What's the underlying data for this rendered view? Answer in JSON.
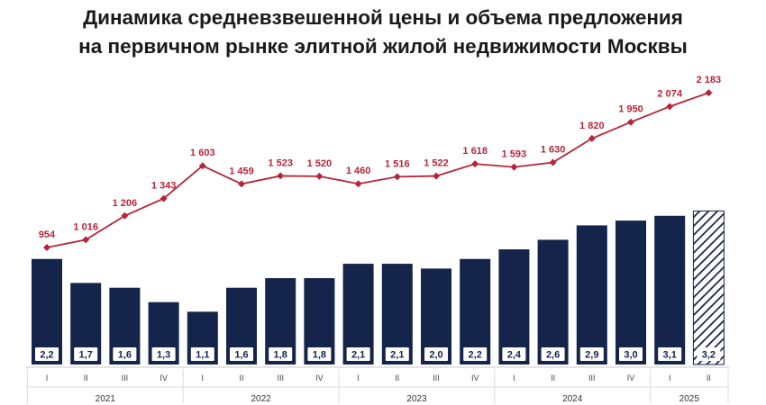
{
  "title": {
    "line1": "Динамика средневзвешенной цены и объема предложения",
    "line2": "на первичном рынке элитной жилой недвижимости Москвы"
  },
  "colors": {
    "bar": "#14244a",
    "line": "#b5253a",
    "label_bg": "#ffffff",
    "hatch": "#14244a"
  },
  "chart_data": {
    "type": "bar+line",
    "categories": [
      "I",
      "II",
      "III",
      "IV",
      "I",
      "II",
      "III",
      "IV",
      "I",
      "II",
      "III",
      "IV",
      "I",
      "II",
      "III",
      "IV",
      "I",
      "II"
    ],
    "years": [
      {
        "label": "2021",
        "start": 0,
        "count": 4
      },
      {
        "label": "2022",
        "start": 4,
        "count": 4
      },
      {
        "label": "2023",
        "start": 8,
        "count": 4
      },
      {
        "label": "2024",
        "start": 12,
        "count": 4
      },
      {
        "label": "2025",
        "start": 16,
        "count": 2
      }
    ],
    "series": [
      {
        "type": "bar",
        "values": [
          2.2,
          1.7,
          1.6,
          1.3,
          1.1,
          1.6,
          1.8,
          1.8,
          2.1,
          2.1,
          2.0,
          2.2,
          2.4,
          2.6,
          2.9,
          3.0,
          3.1,
          3.2
        ],
        "labels": [
          "2,2",
          "1,7",
          "1,6",
          "1,3",
          "1,1",
          "1,6",
          "1,8",
          "1,8",
          "2,1",
          "2,1",
          "2,0",
          "2,2",
          "2,4",
          "2,6",
          "2,9",
          "3,0",
          "3,1",
          "3,2"
        ],
        "hatched_index": 17
      },
      {
        "type": "line",
        "values": [
          954,
          1016,
          1206,
          1343,
          1603,
          1459,
          1523,
          1520,
          1460,
          1516,
          1522,
          1618,
          1593,
          1630,
          1820,
          1950,
          2074,
          2183
        ],
        "labels": [
          "954",
          "1 016",
          "1 206",
          "1 343",
          "1 603",
          "1 459",
          "1 523",
          "1 520",
          "1 460",
          "1 516",
          "1 522",
          "1 618",
          "1 593",
          "1 630",
          "1 820",
          "1 950",
          "2 074",
          "2 183"
        ]
      }
    ],
    "legend": "none",
    "grid": false
  }
}
